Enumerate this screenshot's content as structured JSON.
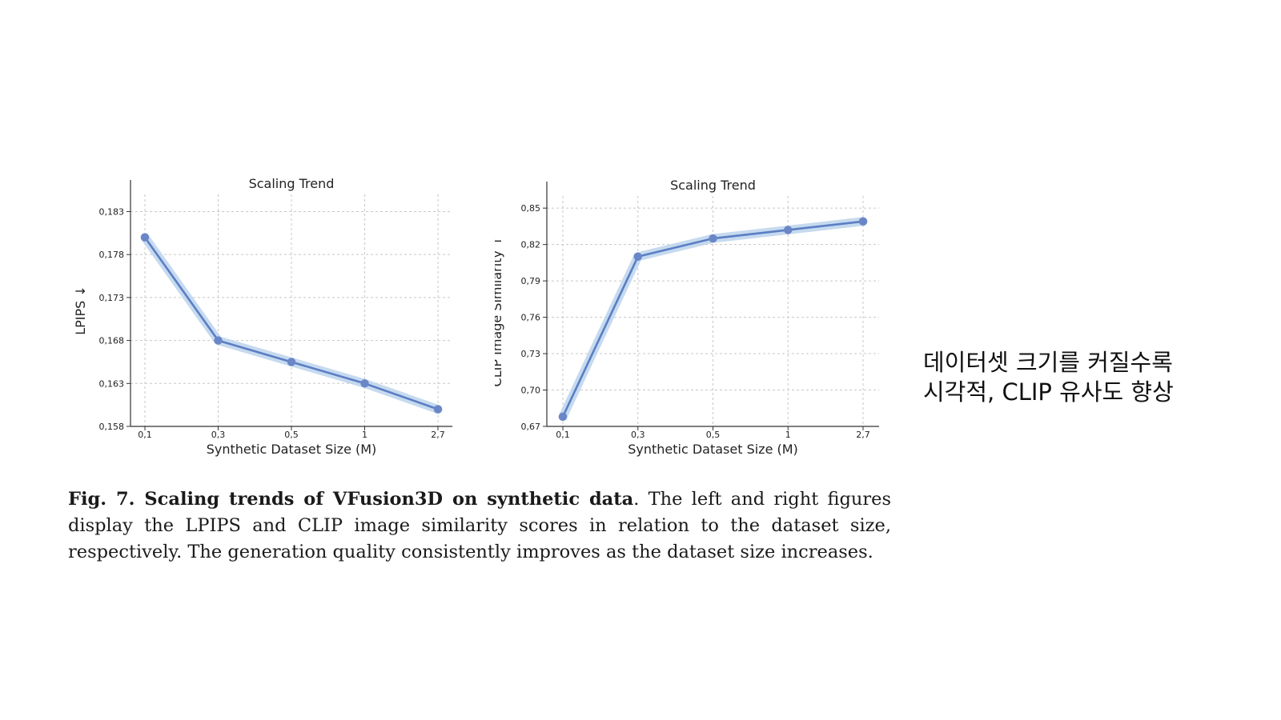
{
  "chart_data": [
    {
      "type": "line",
      "title": "Scaling Trend",
      "xlabel": "Synthetic Dataset Size (M)",
      "ylabel": "LPIPS ↓",
      "categories": [
        "0.1",
        "0.3",
        "0.5",
        "1",
        "2.7"
      ],
      "x_tick_labels": [
        "0,1",
        "0,3",
        "0,5",
        "1",
        "2,7"
      ],
      "series": [
        {
          "values": [
            0.18,
            0.168,
            0.1655,
            0.163,
            0.16
          ]
        }
      ],
      "ylim": [
        0.158,
        0.185
      ],
      "y_ticks": [
        0.158,
        0.163,
        0.168,
        0.173,
        0.178,
        0.183
      ],
      "y_tick_labels": [
        "0,158",
        "0,163",
        "0,168",
        "0,173",
        "0,178",
        "0,183"
      ],
      "grid": true,
      "line_color": "#5b7ec4",
      "band_color": "#bcd3ec"
    },
    {
      "type": "line",
      "title": "Scaling Trend",
      "xlabel": "Synthetic Dataset Size (M)",
      "ylabel": "CLIP Image Similarity ↑",
      "categories": [
        "0.1",
        "0.3",
        "0.5",
        "1",
        "2.7"
      ],
      "x_tick_labels": [
        "0,1",
        "0,3",
        "0,5",
        "1",
        "2,7"
      ],
      "series": [
        {
          "values": [
            0.678,
            0.81,
            0.825,
            0.832,
            0.839
          ]
        }
      ],
      "ylim": [
        0.67,
        0.86
      ],
      "y_ticks": [
        0.67,
        0.7,
        0.73,
        0.76,
        0.79,
        0.82,
        0.85
      ],
      "y_tick_labels": [
        "0,67",
        "0,70",
        "0,73",
        "0,76",
        "0,79",
        "0,82",
        "0,85"
      ],
      "grid": true,
      "line_color": "#5b7ec4",
      "band_color": "#bcd3ec"
    }
  ],
  "caption": {
    "label": "Fig. 7.",
    "bold_title": "Scaling trends of VFusion3D on synthetic data",
    "text": ". The left and right figures display the LPIPS and CLIP image similarity scores in relation to the dataset size, respectively. The generation quality consistently improves as the dataset size increases."
  },
  "note": {
    "line1": "데이터셋 크기를 커질수록",
    "line2": "시각적, CLIP 유사도 향상"
  }
}
